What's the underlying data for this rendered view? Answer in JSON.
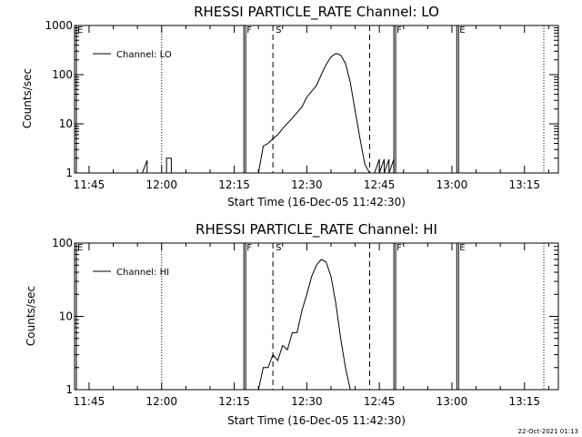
{
  "chart_data": [
    {
      "type": "line",
      "title": "RHESSI PARTICLE_RATE Channel: LO",
      "xlabel": "Start Time (16-Dec-05 11:42:30)",
      "ylabel": "Counts/sec",
      "yscale": "log",
      "xlim": [
        "11:42",
        "13:22"
      ],
      "ylim": [
        1,
        1000
      ],
      "xticks": [
        "11:45",
        "12:00",
        "12:15",
        "12:30",
        "12:45",
        "13:00",
        "13:15"
      ],
      "yticks": [
        "1",
        "10",
        "100",
        "1000"
      ],
      "legend": {
        "label": "Channel: LO",
        "position": "top-left"
      },
      "markers": [
        {
          "time": "11:42",
          "label": "E",
          "style": "solid"
        },
        {
          "time": "12:17",
          "label": "F",
          "style": "solid"
        },
        {
          "time": "12:23",
          "label": "S",
          "style": "dashed"
        },
        {
          "time": "12:43",
          "label": "",
          "style": "dashed"
        },
        {
          "time": "12:48",
          "label": "F",
          "style": "solid"
        },
        {
          "time": "13:01",
          "label": "E",
          "style": "solid"
        }
      ],
      "gridlines": [
        "12:00",
        "13:19"
      ],
      "series": [
        {
          "name": "Channel: LO",
          "x": [
            "11:42",
            "11:56",
            "11:57",
            "11:57",
            "12:01",
            "12:01",
            "12:02",
            "12:02",
            "12:20",
            "12:21",
            "12:22",
            "12:23",
            "12:24",
            "12:25",
            "12:27",
            "12:29",
            "12:30",
            "12:32",
            "12:33",
            "12:34",
            "12:35",
            "12:36",
            "12:37",
            "12:38",
            "12:39",
            "12:40",
            "12:41",
            "12:42",
            "12:43",
            "12:44",
            "12:45",
            "12:45",
            "12:46",
            "12:46",
            "12:47",
            "12:47",
            "12:48",
            "12:48",
            "12:49",
            "13:22"
          ],
          "y": [
            1,
            1,
            1.8,
            1,
            1,
            2,
            2,
            1,
            1,
            3.5,
            4,
            5,
            6,
            8,
            13,
            22,
            35,
            60,
            100,
            160,
            230,
            270,
            250,
            170,
            70,
            18,
            5,
            1.5,
            1,
            1,
            1.9,
            1,
            1.9,
            1,
            1.9,
            1,
            1.9,
            1,
            1,
            1
          ]
        }
      ]
    },
    {
      "type": "line",
      "title": "RHESSI PARTICLE_RATE Channel: HI",
      "xlabel": "Start Time (16-Dec-05 11:42:30)",
      "ylabel": "Counts/sec",
      "yscale": "log",
      "xlim": [
        "11:42",
        "13:22"
      ],
      "ylim": [
        1,
        100
      ],
      "xticks": [
        "11:45",
        "12:00",
        "12:15",
        "12:30",
        "12:45",
        "13:00",
        "13:15"
      ],
      "yticks": [
        "1",
        "10",
        "100"
      ],
      "legend": {
        "label": "Channel: HI",
        "position": "top-left"
      },
      "markers": [
        {
          "time": "11:42",
          "label": "E",
          "style": "solid"
        },
        {
          "time": "12:17",
          "label": "F",
          "style": "solid"
        },
        {
          "time": "12:23",
          "label": "S",
          "style": "dashed"
        },
        {
          "time": "12:43",
          "label": "",
          "style": "dashed"
        },
        {
          "time": "12:48",
          "label": "F",
          "style": "solid"
        },
        {
          "time": "13:01",
          "label": "E",
          "style": "solid"
        }
      ],
      "gridlines": [
        "12:00",
        "13:19"
      ],
      "series": [
        {
          "name": "Channel: HI",
          "x": [
            "12:20",
            "12:21",
            "12:22",
            "12:23",
            "12:24",
            "12:25",
            "12:26",
            "12:27",
            "12:28",
            "12:29",
            "12:30",
            "12:31",
            "12:32",
            "12:33",
            "12:34",
            "12:35",
            "12:36",
            "12:37",
            "12:38",
            "12:39"
          ],
          "y": [
            1,
            2,
            2,
            3,
            2.5,
            4,
            3.5,
            6,
            6,
            12,
            20,
            35,
            50,
            60,
            55,
            35,
            15,
            5,
            2,
            1
          ]
        }
      ]
    }
  ],
  "timestamp": "22-Oct-2021 01:13"
}
